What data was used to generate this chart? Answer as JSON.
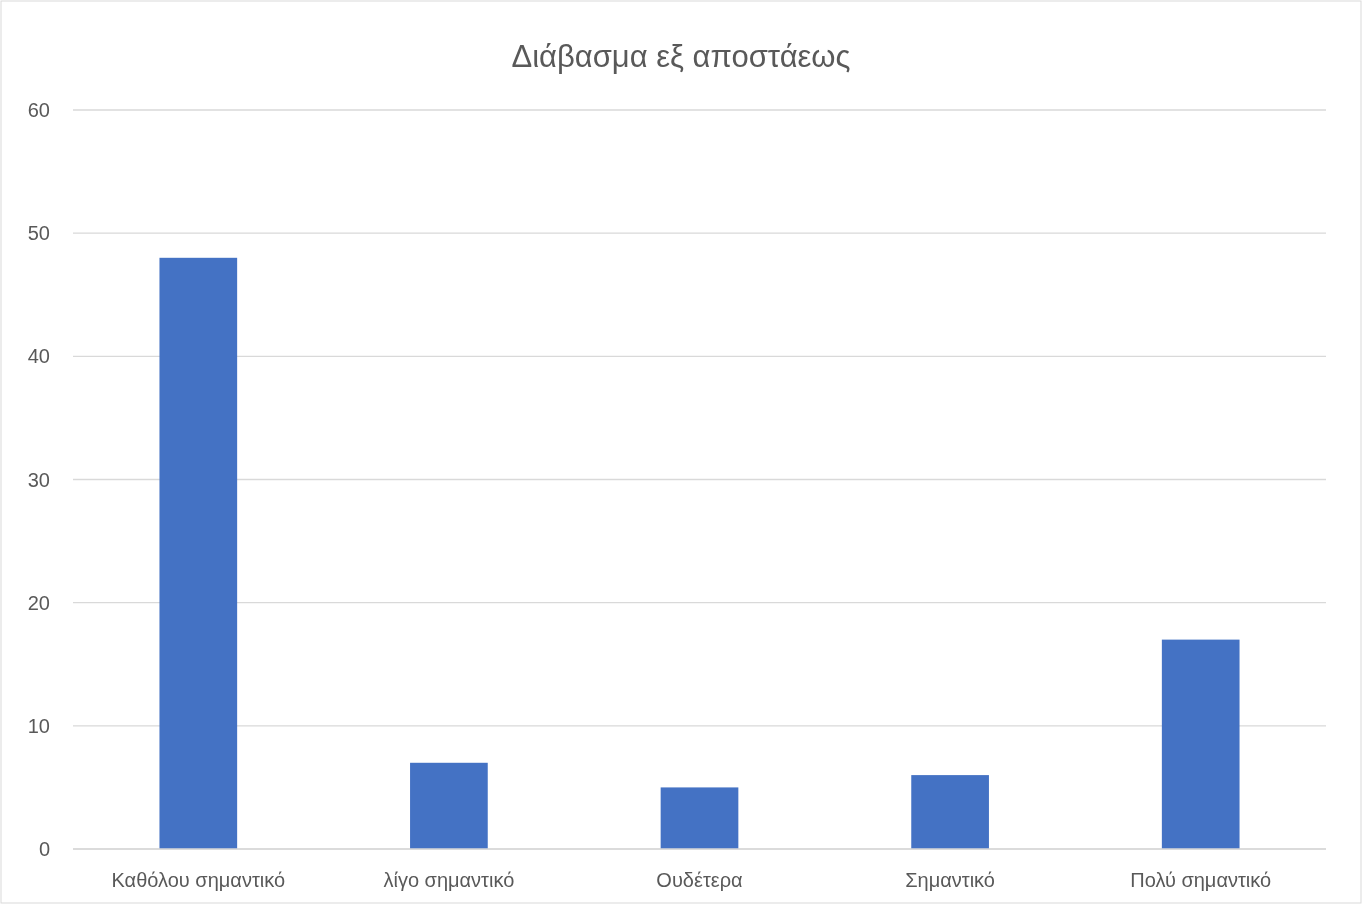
{
  "chart_data": {
    "type": "bar",
    "title": "Διάβασμα εξ αποστάεως",
    "categories": [
      "Καθόλου σημαντικό",
      "λίγο σημαντικό",
      "Ουδέτερα",
      "Σημαντικό",
      "Πολύ σημαντικό"
    ],
    "values": [
      48,
      7,
      5,
      6,
      17
    ],
    "color": "#4472c4",
    "ylim": [
      0,
      60
    ],
    "yticks": [
      0,
      10,
      20,
      30,
      40,
      50,
      60
    ],
    "grid": "y"
  }
}
